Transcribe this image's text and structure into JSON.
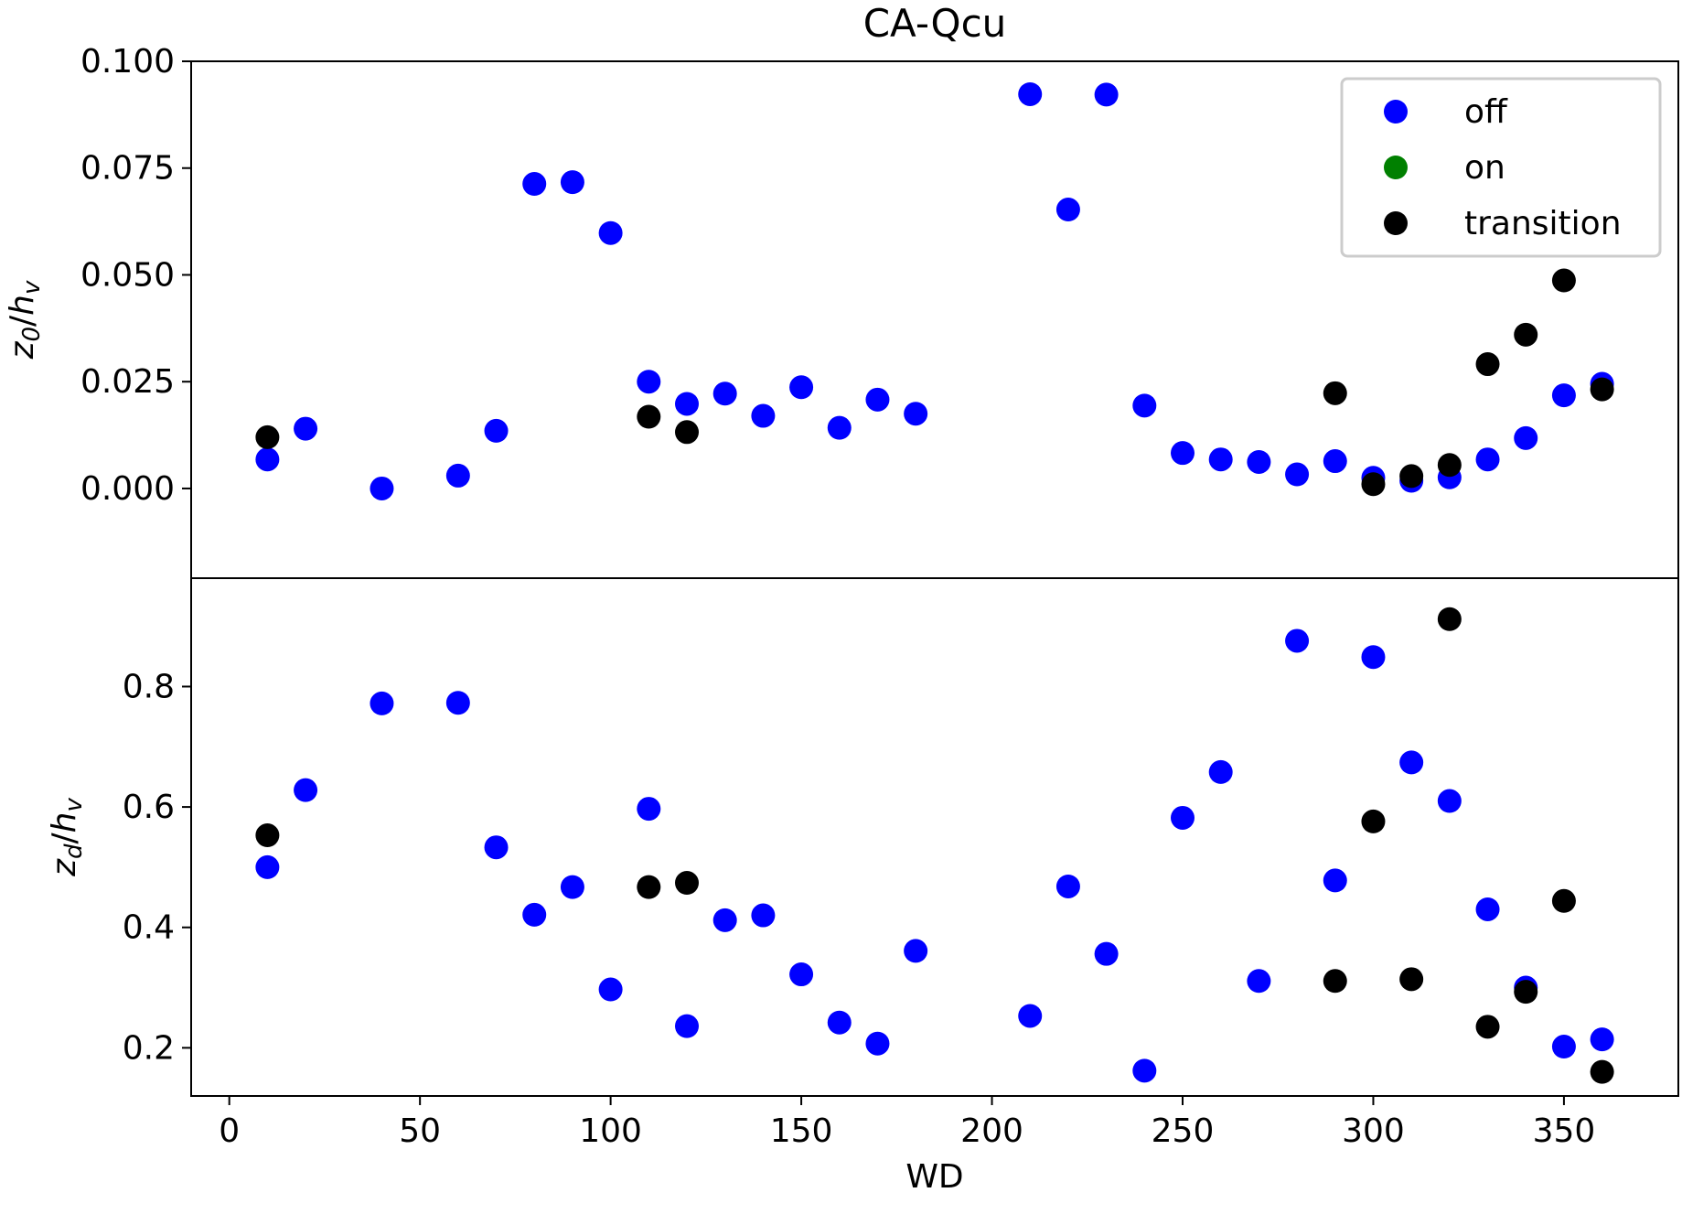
{
  "chart_data": {
    "type": "scatter",
    "title": "CA-Qcu",
    "xlabel": "WD",
    "xlim": [
      -10,
      380
    ],
    "xticks": [
      0,
      50,
      100,
      150,
      200,
      250,
      300,
      350
    ],
    "legend": {
      "placement": "top-right",
      "entries": [
        {
          "name": "off",
          "color": "#0000ff"
        },
        {
          "name": "on",
          "color": "#008000"
        },
        {
          "name": "transition",
          "color": "#000000"
        }
      ]
    },
    "panels": [
      {
        "ylabel_main": "z",
        "ylabel_sub": "0",
        "ylabel_den": "h",
        "ylabel_den_sub": "v",
        "ylim": [
          -0.021,
          0.1
        ],
        "yticks": [
          "0.000",
          "0.025",
          "0.050",
          "0.075",
          "0.100"
        ],
        "series": [
          {
            "name": "off",
            "color": "#0000ff",
            "x": [
              10,
              20,
              40,
              60,
              70,
              80,
              90,
              100,
              110,
              120,
              130,
              140,
              150,
              160,
              170,
              180,
              210,
              220,
              230,
              240,
              250,
              260,
              270,
              280,
              290,
              300,
              310,
              320,
              330,
              340,
              350,
              360
            ],
            "y": [
              0.0068,
              0.014,
              0.0,
              0.003,
              0.0135,
              0.0713,
              0.0717,
              0.0598,
              0.025,
              0.0198,
              0.0222,
              0.017,
              0.0237,
              0.0142,
              0.0208,
              0.0175,
              0.0923,
              0.0653,
              0.0922,
              0.0194,
              0.0083,
              0.0068,
              0.0062,
              0.0033,
              0.0064,
              0.0025,
              0.0018,
              0.0026,
              0.0068,
              0.0118,
              0.0218,
              0.0245
            ]
          },
          {
            "name": "on",
            "color": "#008000",
            "x": [],
            "y": []
          },
          {
            "name": "transition",
            "color": "#000000",
            "x": [
              10,
              110,
              120,
              290,
              300,
              310,
              320,
              330,
              340,
              350,
              360
            ],
            "y": [
              0.012,
              0.0168,
              0.0132,
              0.0223,
              0.001,
              0.0029,
              0.0055,
              0.0291,
              0.036,
              0.0487,
              0.0232
            ]
          }
        ]
      },
      {
        "ylabel_main": "z",
        "ylabel_sub": "d",
        "ylabel_den": "h",
        "ylabel_den_sub": "v",
        "ylim": [
          0.12,
          0.98
        ],
        "yticks": [
          "0.2",
          "0.4",
          "0.6",
          "0.8"
        ],
        "series": [
          {
            "name": "off",
            "color": "#0000ff",
            "x": [
              10,
              20,
              40,
              60,
              70,
              80,
              90,
              100,
              110,
              120,
              130,
              140,
              150,
              160,
              170,
              180,
              210,
              220,
              230,
              240,
              250,
              260,
              270,
              280,
              290,
              300,
              310,
              320,
              330,
              340,
              350,
              360
            ],
            "y": [
              0.5,
              0.628,
              0.772,
              0.773,
              0.533,
              0.421,
              0.467,
              0.297,
              0.597,
              0.236,
              0.412,
              0.42,
              0.322,
              0.242,
              0.207,
              0.361,
              0.253,
              0.468,
              0.356,
              0.162,
              0.582,
              0.658,
              0.311,
              0.876,
              0.478,
              0.849,
              0.674,
              0.61,
              0.43,
              0.3,
              0.202,
              0.214
            ]
          },
          {
            "name": "on",
            "color": "#008000",
            "x": [],
            "y": []
          },
          {
            "name": "transition",
            "color": "#000000",
            "x": [
              10,
              110,
              120,
              290,
              300,
              310,
              320,
              330,
              340,
              350,
              360
            ],
            "y": [
              0.553,
              0.467,
              0.474,
              0.311,
              0.576,
              0.314,
              0.912,
              0.235,
              0.293,
              0.444,
              0.16
            ]
          }
        ]
      }
    ]
  }
}
